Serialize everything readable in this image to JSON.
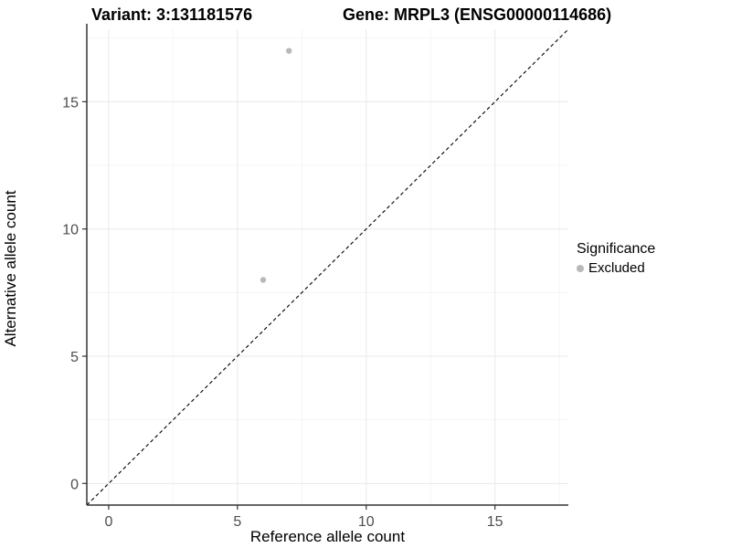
{
  "figure": {
    "title_left": "Variant: 3:131181576",
    "title_right": "Gene: MRPL3 (ENSG00000114686)"
  },
  "chart_data": {
    "type": "scatter",
    "title": "Variant: 3:131181576   Gene: MRPL3 (ENSG00000114686)",
    "xlabel": "Reference allele count",
    "ylabel": "Alternative allele count",
    "xlim": [
      -0.85,
      17.85
    ],
    "ylim": [
      -0.85,
      17.85
    ],
    "x_ticks": [
      0,
      5,
      10,
      15
    ],
    "y_ticks": [
      0,
      5,
      10,
      15
    ],
    "x_minor_ticks": [
      2.5,
      7.5,
      12.5,
      17.5
    ],
    "y_minor_ticks": [
      2.5,
      7.5,
      12.5,
      17.5
    ],
    "grid": true,
    "series": [
      {
        "name": "Excluded",
        "color": "#b9b9b9",
        "points": [
          {
            "x": 7,
            "y": 17
          },
          {
            "x": 6,
            "y": 8
          }
        ]
      }
    ],
    "reference_line": {
      "type": "identity",
      "style": "dashed",
      "color": "#000000"
    },
    "legend": {
      "title": "Significance",
      "position": "right",
      "items": [
        {
          "label": "Excluded",
          "color": "#b9b9b9"
        }
      ]
    }
  },
  "colors": {
    "background": "#ffffff",
    "grid_major": "#e9e9e9",
    "grid_minor": "#f5f5f5",
    "axis_line": "#333333",
    "tick_label": "#4d4d4d",
    "text": "#000000"
  }
}
